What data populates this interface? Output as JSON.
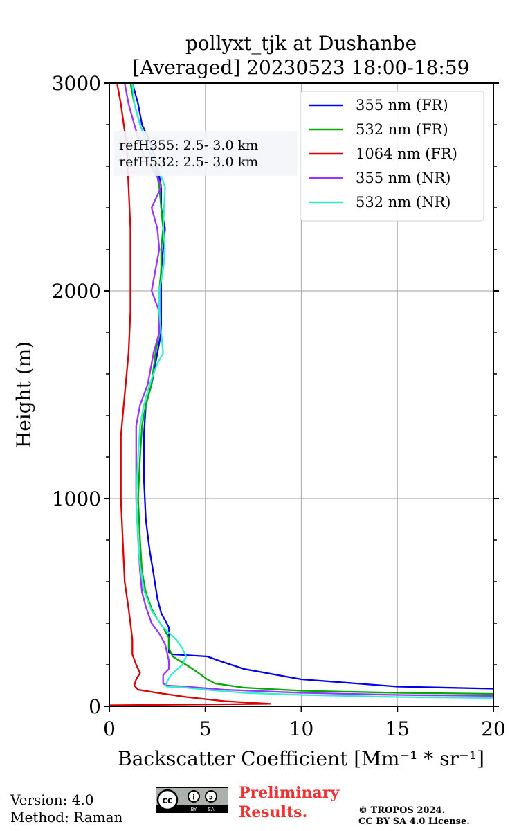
{
  "chart_data": {
    "type": "line",
    "title": "pollyxt_tjk at Dushanbe",
    "subtitle": "[Averaged] 20230523 18:00-18:59",
    "xlabel": "Backscatter Coefficient [Mm⁻¹ * sr⁻¹]",
    "ylabel": "Height (m)",
    "xlim": [
      0,
      20
    ],
    "ylim": [
      0,
      3000
    ],
    "xticks": [
      0,
      5,
      10,
      15,
      20
    ],
    "yticks": [
      0,
      1000,
      2000,
      3000
    ],
    "grid": true,
    "legend_position": "top-right",
    "annotation": [
      "refH355:  2.5- 3.0 km",
      "refH532:  2.5- 3.0 km"
    ],
    "series": [
      {
        "name": "355 nm (FR)",
        "color": "#0000ee",
        "points": [
          [
            20,
            85
          ],
          [
            15,
            95
          ],
          [
            10,
            130
          ],
          [
            7,
            180
          ],
          [
            5.7,
            220
          ],
          [
            5.1,
            240
          ],
          [
            3.3,
            250
          ],
          [
            3.1,
            260
          ],
          [
            3.1,
            330
          ],
          [
            3.1,
            380
          ],
          [
            2.7,
            450
          ],
          [
            2.5,
            520
          ],
          [
            2.4,
            580
          ],
          [
            2.3,
            640
          ],
          [
            2.1,
            750
          ],
          [
            1.9,
            900
          ],
          [
            1.8,
            1100
          ],
          [
            1.8,
            1300
          ],
          [
            1.9,
            1450
          ],
          [
            2.2,
            1550
          ],
          [
            2.5,
            1700
          ],
          [
            2.7,
            1800
          ],
          [
            2.7,
            1900
          ],
          [
            2.7,
            2000
          ],
          [
            2.7,
            2100
          ],
          [
            2.8,
            2200
          ],
          [
            2.9,
            2300
          ],
          [
            2.7,
            2400
          ],
          [
            2.7,
            2500
          ],
          [
            2.5,
            2600
          ],
          [
            2.2,
            2700
          ],
          [
            1.7,
            2800
          ],
          [
            1.5,
            2900
          ],
          [
            1.2,
            3000
          ]
        ]
      },
      {
        "name": "532 nm (FR)",
        "color": "#00aa00",
        "points": [
          [
            20,
            60
          ],
          [
            15,
            65
          ],
          [
            10,
            75
          ],
          [
            7,
            90
          ],
          [
            5.5,
            110
          ],
          [
            5.1,
            130
          ],
          [
            4.5,
            170
          ],
          [
            4,
            200
          ],
          [
            3.3,
            240
          ],
          [
            3.1,
            280
          ],
          [
            3.1,
            330
          ],
          [
            2.8,
            380
          ],
          [
            2.5,
            420
          ],
          [
            2.2,
            470
          ],
          [
            1.9,
            550
          ],
          [
            1.7,
            650
          ],
          [
            1.6,
            800
          ],
          [
            1.5,
            1000
          ],
          [
            1.6,
            1200
          ],
          [
            1.7,
            1350
          ],
          [
            1.9,
            1450
          ],
          [
            2.2,
            1550
          ],
          [
            2.4,
            1700
          ],
          [
            2.6,
            1800
          ],
          [
            2.6,
            1900
          ],
          [
            2.6,
            2000
          ],
          [
            2.7,
            2100
          ],
          [
            2.7,
            2200
          ],
          [
            2.8,
            2300
          ],
          [
            2.7,
            2400
          ],
          [
            2.6,
            2500
          ],
          [
            2.4,
            2600
          ],
          [
            2.0,
            2700
          ],
          [
            1.6,
            2800
          ],
          [
            1.3,
            2900
          ],
          [
            1.1,
            3000
          ]
        ]
      },
      {
        "name": "1064 nm (FR)",
        "color": "#dd0000",
        "points": [
          [
            0,
            5
          ],
          [
            8.4,
            12
          ],
          [
            6,
            25
          ],
          [
            4,
            45
          ],
          [
            2.5,
            65
          ],
          [
            1.5,
            80
          ],
          [
            1.3,
            100
          ],
          [
            1.4,
            130
          ],
          [
            1.6,
            160
          ],
          [
            1.4,
            200
          ],
          [
            1.2,
            250
          ],
          [
            1.2,
            320
          ],
          [
            1.1,
            400
          ],
          [
            1.0,
            470
          ],
          [
            0.8,
            600
          ],
          [
            0.7,
            800
          ],
          [
            0.6,
            1000
          ],
          [
            0.6,
            1200
          ],
          [
            0.6,
            1300
          ],
          [
            0.7,
            1400
          ],
          [
            0.8,
            1500
          ],
          [
            1.0,
            1700
          ],
          [
            1.1,
            1900
          ],
          [
            1.1,
            2100
          ],
          [
            1.1,
            2300
          ],
          [
            1.0,
            2500
          ],
          [
            0.9,
            2700
          ],
          [
            0.6,
            2900
          ],
          [
            0.4,
            3000
          ]
        ]
      },
      {
        "name": "355 nm (NR)",
        "color": "#9933ff",
        "points": [
          [
            20,
            50
          ],
          [
            15,
            55
          ],
          [
            10,
            65
          ],
          [
            6,
            80
          ],
          [
            4,
            95
          ],
          [
            3,
            100
          ],
          [
            2.8,
            110
          ],
          [
            2.8,
            150
          ],
          [
            3.1,
            180
          ],
          [
            3.1,
            220
          ],
          [
            3.0,
            260
          ],
          [
            2.9,
            300
          ],
          [
            2.6,
            350
          ],
          [
            2.2,
            400
          ],
          [
            1.9,
            480
          ],
          [
            1.7,
            550
          ],
          [
            1.6,
            650
          ],
          [
            1.5,
            800
          ],
          [
            1.4,
            1000
          ],
          [
            1.4,
            1200
          ],
          [
            1.4,
            1350
          ],
          [
            1.6,
            1450
          ],
          [
            2.0,
            1550
          ],
          [
            2.2,
            1650
          ],
          [
            2.3,
            1700
          ],
          [
            2.6,
            1800
          ],
          [
            2.6,
            1900
          ],
          [
            2.2,
            2000
          ],
          [
            2.4,
            2100
          ],
          [
            2.6,
            2200
          ],
          [
            2.5,
            2300
          ],
          [
            2.2,
            2400
          ],
          [
            2.7,
            2500
          ],
          [
            2.5,
            2550
          ],
          [
            1.8,
            2650
          ],
          [
            1.3,
            2800
          ],
          [
            1.0,
            2900
          ],
          [
            0.8,
            3000
          ]
        ]
      },
      {
        "name": "532 nm (NR)",
        "color": "#33eecc",
        "points": [
          [
            20,
            40
          ],
          [
            15,
            45
          ],
          [
            10,
            55
          ],
          [
            7,
            65
          ],
          [
            5,
            80
          ],
          [
            4,
            90
          ],
          [
            3,
            95
          ],
          [
            2.9,
            100
          ],
          [
            3.2,
            150
          ],
          [
            3.8,
            200
          ],
          [
            4.0,
            240
          ],
          [
            3.8,
            280
          ],
          [
            3.5,
            320
          ],
          [
            2.8,
            380
          ],
          [
            2.2,
            460
          ],
          [
            1.8,
            560
          ],
          [
            1.6,
            680
          ],
          [
            1.5,
            800
          ],
          [
            1.4,
            1000
          ],
          [
            1.5,
            1200
          ],
          [
            1.6,
            1350
          ],
          [
            1.8,
            1450
          ],
          [
            2.1,
            1550
          ],
          [
            2.5,
            1650
          ],
          [
            2.8,
            1700
          ],
          [
            2.7,
            1800
          ],
          [
            2.6,
            1900
          ],
          [
            2.6,
            2000
          ],
          [
            2.8,
            2100
          ],
          [
            2.9,
            2200
          ],
          [
            2.8,
            2300
          ],
          [
            2.9,
            2500
          ],
          [
            2.5,
            2600
          ],
          [
            2.0,
            2700
          ],
          [
            1.6,
            2800
          ],
          [
            1.3,
            2900
          ],
          [
            1.2,
            3000
          ]
        ]
      }
    ]
  },
  "footer": {
    "version": "Version: 4.0",
    "method": "Method: Raman",
    "preliminary_1": "Preliminary",
    "preliminary_2": "Results.",
    "copyright_1": "© TROPOS 2024.",
    "copyright_2": "CC BY SA 4.0 License.",
    "cc_logo": "cc by-sa license badge"
  }
}
